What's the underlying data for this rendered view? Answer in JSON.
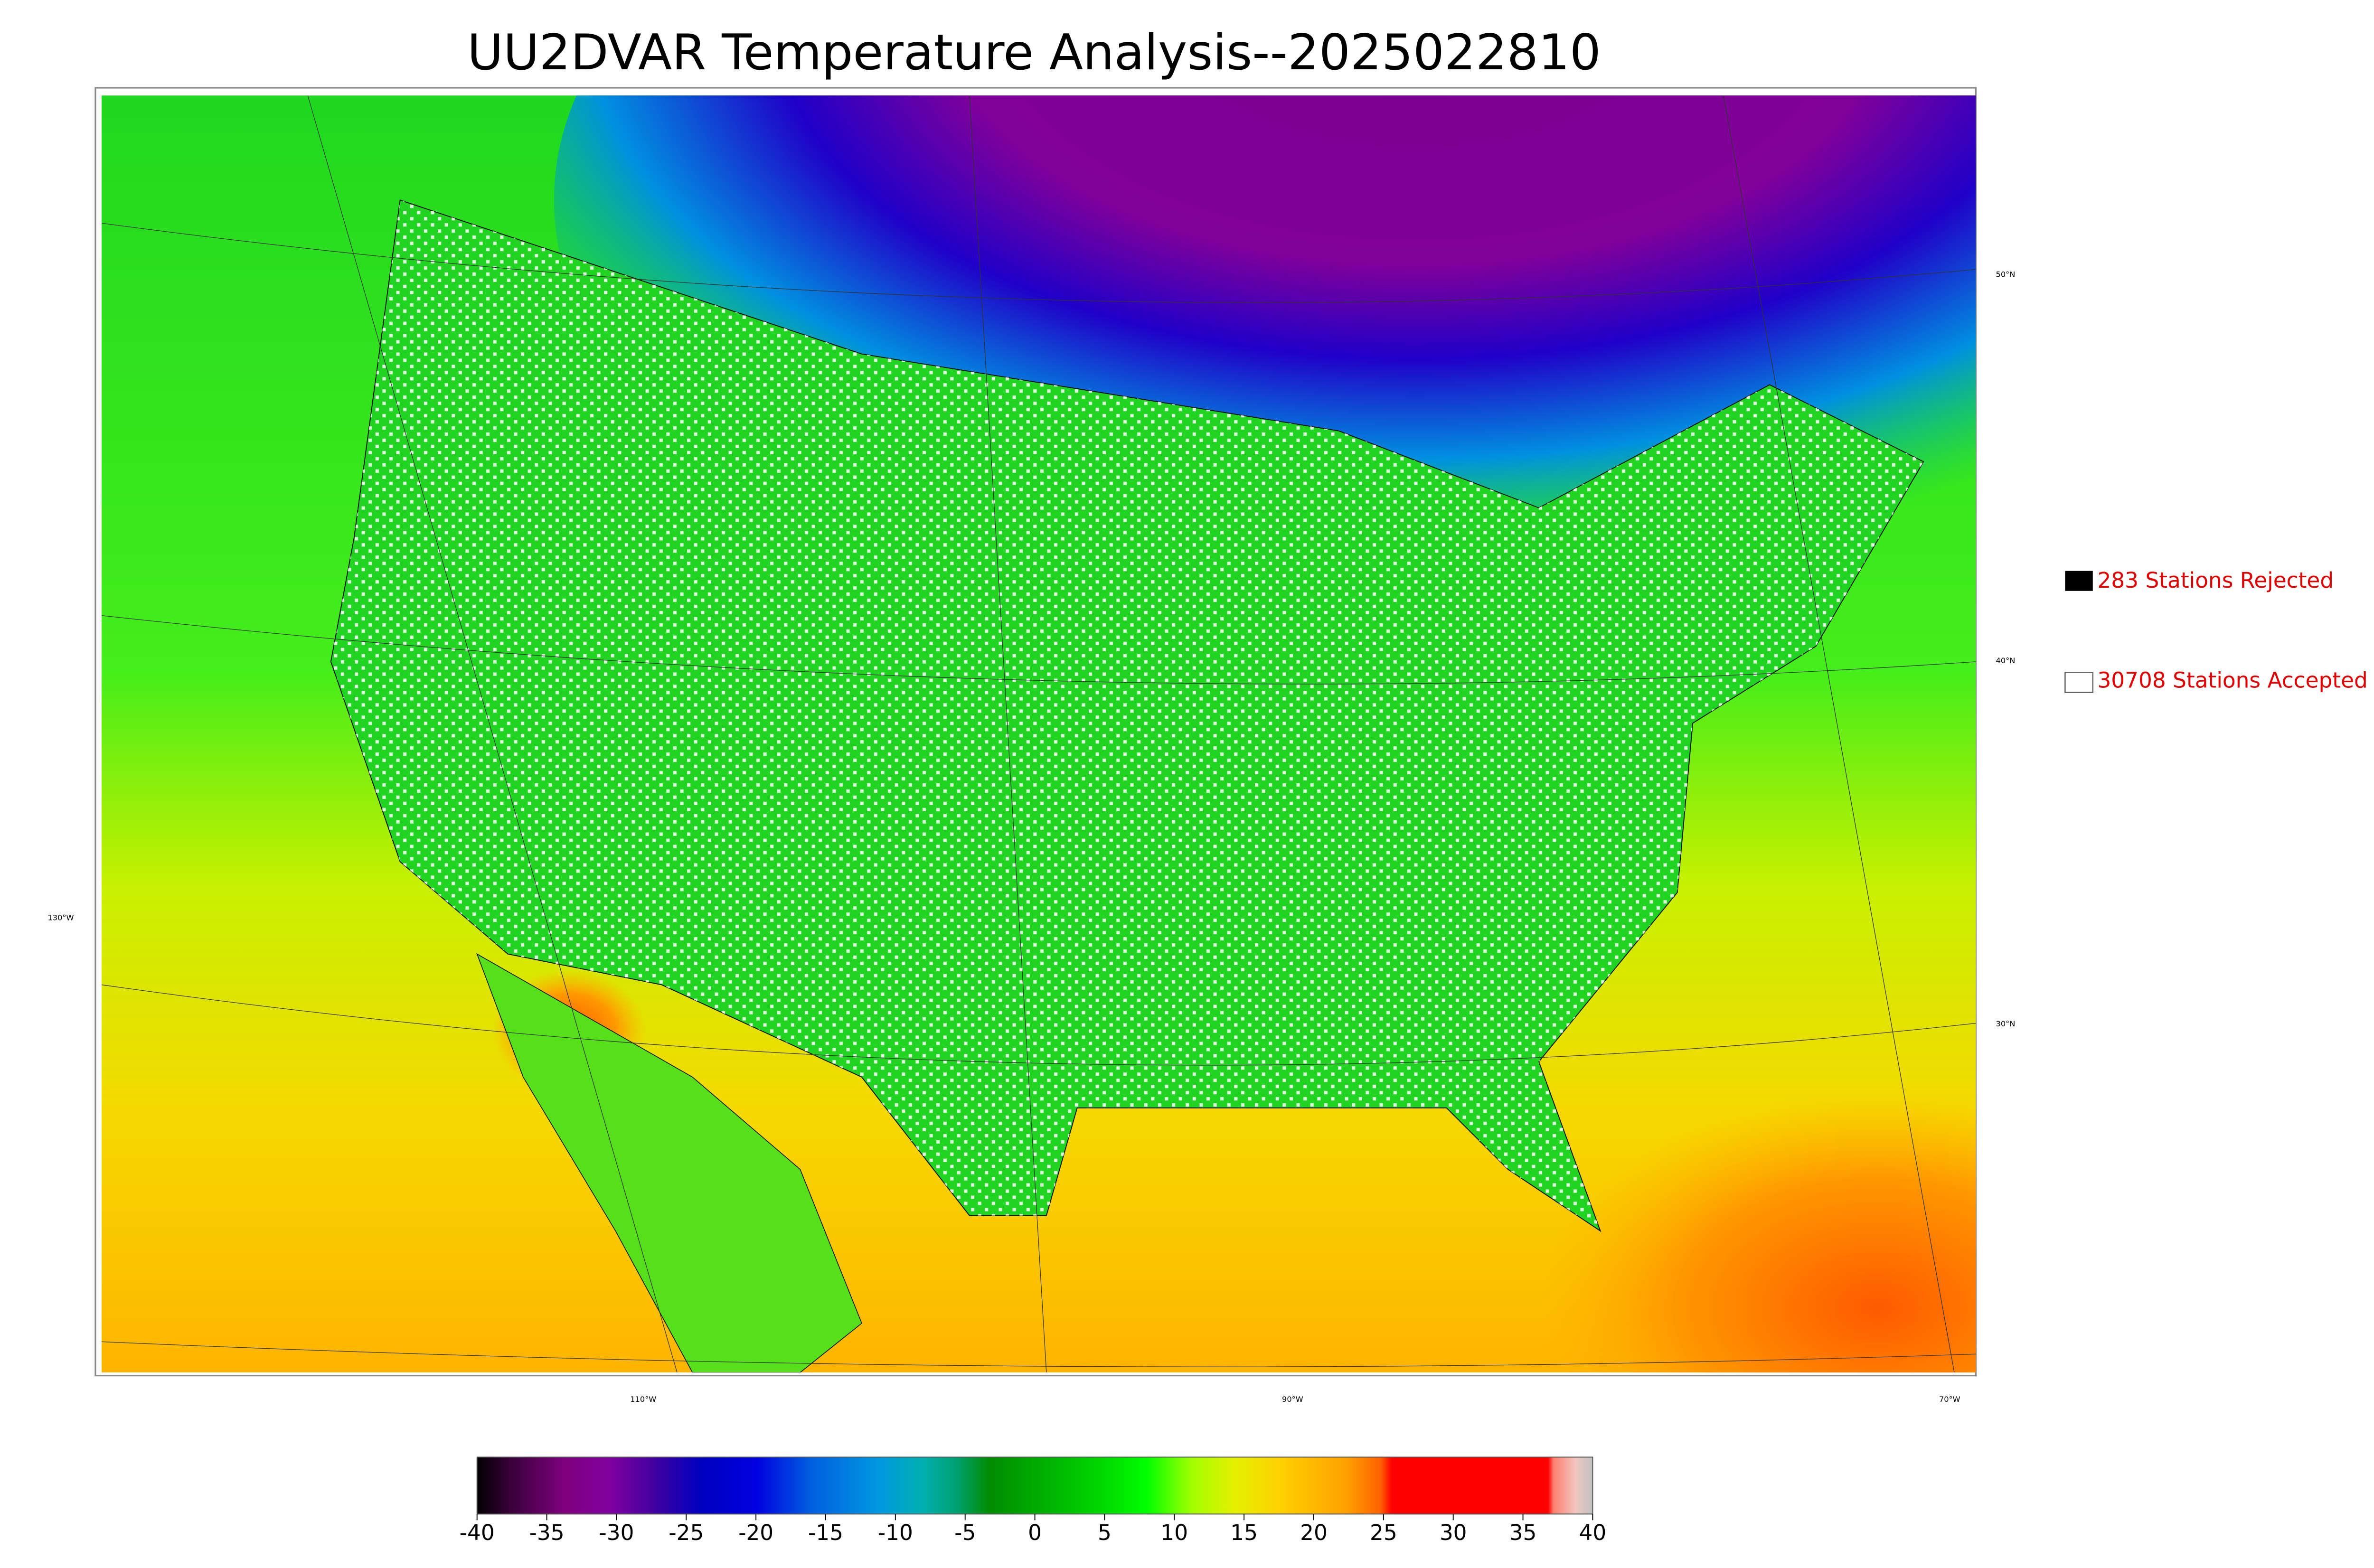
{
  "title": "UU2DVAR Temperature Analysis--2025022810",
  "legend": [
    {
      "label": "283 Stations Rejected"
    },
    {
      "label": "30708 Stations Accepted"
    }
  ],
  "graticule": {
    "lat_labels": [
      "50°N",
      "40°N",
      "30°N"
    ],
    "lon_labels": [
      "130°W",
      "110°W",
      "90°W",
      "70°W"
    ]
  },
  "colorbar": {
    "range": [
      -40,
      40
    ],
    "ticks": [
      -40,
      -35,
      -30,
      -25,
      -20,
      -15,
      -10,
      -5,
      0,
      5,
      10,
      15,
      20,
      25,
      30,
      35,
      40
    ]
  }
}
